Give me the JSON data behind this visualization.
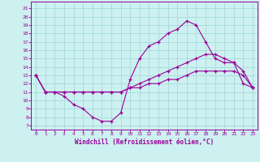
{
  "xlabel": "Windchill (Refroidissement éolien,°C)",
  "x_ticks": [
    0,
    1,
    2,
    3,
    4,
    5,
    6,
    7,
    8,
    9,
    10,
    11,
    12,
    13,
    14,
    15,
    16,
    17,
    18,
    19,
    20,
    21,
    22,
    23
  ],
  "y_ticks": [
    7,
    8,
    9,
    10,
    11,
    12,
    13,
    14,
    15,
    16,
    17,
    18,
    19,
    20,
    21
  ],
  "xlim": [
    -0.5,
    23.5
  ],
  "ylim": [
    6.5,
    21.8
  ],
  "bg_color": "#cdf0f0",
  "grid_color": "#aadddd",
  "line_color": "#990099",
  "line1_x": [
    0,
    1,
    2,
    3,
    4,
    5,
    6,
    7,
    8,
    9,
    10,
    11,
    12,
    13,
    14,
    15,
    16,
    17,
    18,
    19,
    20,
    21,
    22,
    23
  ],
  "line1_y": [
    13,
    11,
    11,
    10.5,
    9.5,
    9,
    8,
    7.5,
    7.5,
    8.5,
    12.5,
    15,
    16.5,
    17,
    18,
    18.5,
    19.5,
    19,
    17,
    15,
    14.5,
    14.5,
    12,
    11.5
  ],
  "line2_x": [
    0,
    1,
    2,
    3,
    4,
    5,
    6,
    7,
    8,
    9,
    10,
    11,
    12,
    13,
    14,
    15,
    16,
    17,
    18,
    19,
    20,
    21,
    22,
    23
  ],
  "line2_y": [
    13,
    11,
    11,
    11,
    11,
    11,
    11,
    11,
    11,
    11,
    11.5,
    12,
    12.5,
    13,
    13.5,
    14,
    14.5,
    15,
    15.5,
    15.5,
    15,
    14.5,
    13.5,
    11.5
  ],
  "line3_x": [
    0,
    1,
    2,
    3,
    4,
    5,
    6,
    7,
    8,
    9,
    10,
    11,
    12,
    13,
    14,
    15,
    16,
    17,
    18,
    19,
    20,
    21,
    22,
    23
  ],
  "line3_y": [
    13,
    11,
    11,
    11,
    11,
    11,
    11,
    11,
    11,
    11,
    11.5,
    11.5,
    12,
    12,
    12.5,
    12.5,
    13,
    13.5,
    13.5,
    13.5,
    13.5,
    13.5,
    13,
    11.5
  ]
}
